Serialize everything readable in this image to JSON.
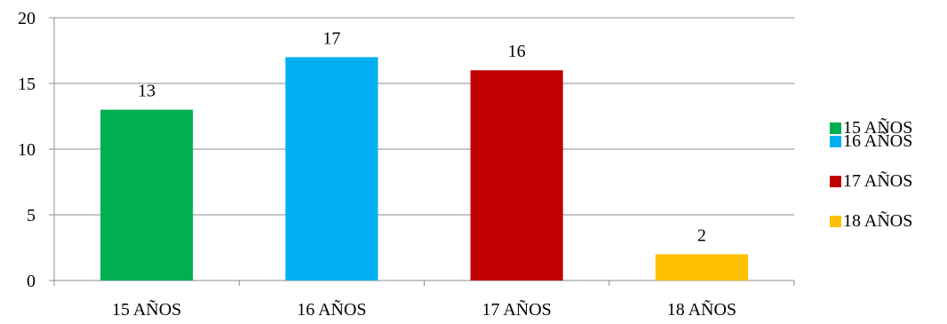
{
  "chart_data": {
    "type": "bar",
    "title": "",
    "xlabel": "",
    "ylabel": "",
    "categories": [
      "15 AÑOS",
      "16 AÑOS",
      "17 AÑOS",
      "18 AÑOS"
    ],
    "values": [
      13,
      17,
      16,
      2
    ],
    "data_labels": [
      "13",
      "17",
      "16",
      "2"
    ],
    "colors": [
      "#00B050",
      "#00B0F0",
      "#C00000",
      "#FFC000"
    ],
    "ylim": [
      0,
      20
    ],
    "yticks": [
      0,
      5,
      10,
      15,
      20
    ],
    "ytick_labels": [
      "0",
      "5",
      "10",
      "15",
      "20"
    ],
    "grid": true,
    "legend_position": "right",
    "legend": [
      "15 AÑOS",
      "16 AÑOS",
      "17 AÑOS",
      "18 AÑOS"
    ]
  }
}
